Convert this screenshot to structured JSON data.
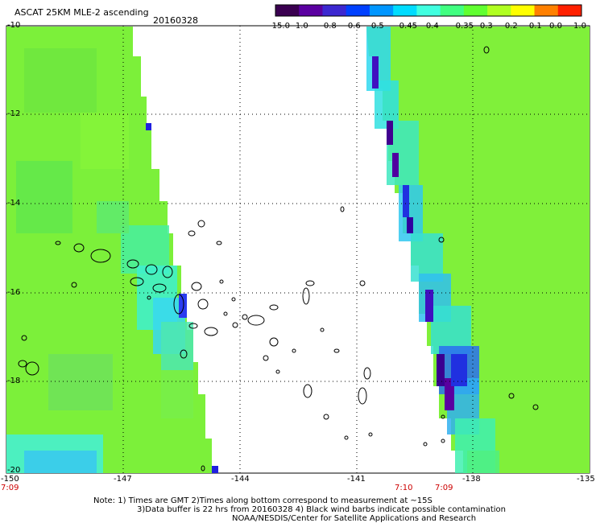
{
  "header": {
    "title": "ASCAT 25KM MLE-2 ascending",
    "date": "20160328"
  },
  "colorbar": {
    "labels": [
      "-15.0",
      "-1.0",
      "-0.8",
      "-0.6",
      "-0.5",
      "-0.45",
      "-0.4",
      "-0.35",
      "-0.3",
      "-0.2",
      "-0.1",
      "0.0",
      "1.0"
    ],
    "colors": [
      "#3a0050",
      "#5a00a0",
      "#3c28d0",
      "#0040ff",
      "#0096ff",
      "#00dcff",
      "#40ffe0",
      "#40ff80",
      "#60ff30",
      "#b0ff20",
      "#ffff00",
      "#ff8000",
      "#ff2000"
    ]
  },
  "axes": {
    "lat_labels": [
      "-10",
      "-12",
      "-14",
      "-16",
      "-18",
      "-20"
    ],
    "lon_labels": [
      "-150",
      "-147",
      "-144",
      "-141",
      "-138",
      "-135"
    ]
  },
  "times": {
    "left": "7:09",
    "mid": "7:10",
    "right": "7:09"
  },
  "footer": {
    "line1": "Note: 1) Times are GMT 2)Times along bottom correspond to measurement at ~15S",
    "line2": "3)Data buffer is 22 hrs from 20160328 4) Black wind barbs indicate possible contamination",
    "line3": "NOAA/NESDIS/Center for Satellite Applications and Research"
  }
}
